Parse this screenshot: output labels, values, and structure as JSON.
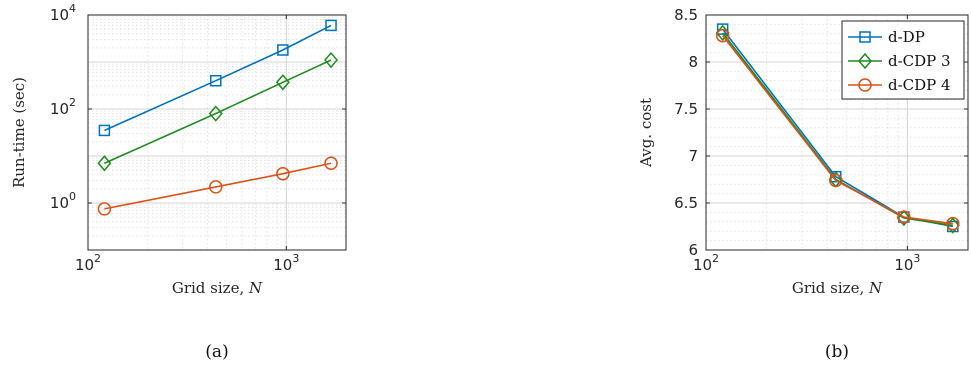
{
  "chart_data": [
    {
      "type": "line",
      "caption": "(a)",
      "xlabel": "Grid size, N",
      "ylabel": "Run-time (sec)",
      "xscale": "log",
      "yscale": "log",
      "xlim": [
        100,
        2000
      ],
      "ylim": [
        0.1,
        10000
      ],
      "xticks": [
        100,
        1000
      ],
      "yticks": [
        1,
        100,
        10000
      ],
      "grid": true,
      "minor_grid": true,
      "legend": null,
      "series": [
        {
          "color": "#0072BD",
          "marker": "square",
          "x": [
            121,
            441,
            961,
            1681
          ],
          "y": [
            35,
            400,
            1800,
            6000
          ]
        },
        {
          "color": "#1E8A1E",
          "marker": "diamond",
          "x": [
            121,
            441,
            961,
            1681
          ],
          "y": [
            7,
            80,
            370,
            1100
          ]
        },
        {
          "color": "#D95319",
          "marker": "circle",
          "x": [
            121,
            441,
            961,
            1681
          ],
          "y": [
            0.75,
            2.2,
            4.2,
            7.0
          ]
        }
      ]
    },
    {
      "type": "line",
      "caption": "(b)",
      "xlabel": "Grid size, N",
      "ylabel": "Avg. cost",
      "xscale": "log",
      "yscale": "linear",
      "xlim": [
        100,
        2000
      ],
      "ylim": [
        6,
        8.5
      ],
      "xticks": [
        100,
        1000
      ],
      "yticks": [
        6,
        6.5,
        7,
        7.5,
        8,
        8.5
      ],
      "grid": true,
      "minor_grid": true,
      "legend": "top-right",
      "series": [
        {
          "name": "d-DP",
          "color": "#0072BD",
          "marker": "square",
          "x": [
            121,
            441,
            961,
            1681
          ],
          "y": [
            8.35,
            6.78,
            6.35,
            6.25
          ]
        },
        {
          "name": "d-CDP 3",
          "color": "#1E8A1E",
          "marker": "diamond",
          "x": [
            121,
            441,
            961,
            1681
          ],
          "y": [
            8.31,
            6.75,
            6.34,
            6.26
          ]
        },
        {
          "name": "d-CDP 4",
          "color": "#D95319",
          "marker": "circle",
          "x": [
            121,
            441,
            961,
            1681
          ],
          "y": [
            8.28,
            6.74,
            6.35,
            6.28
          ]
        }
      ]
    }
  ]
}
